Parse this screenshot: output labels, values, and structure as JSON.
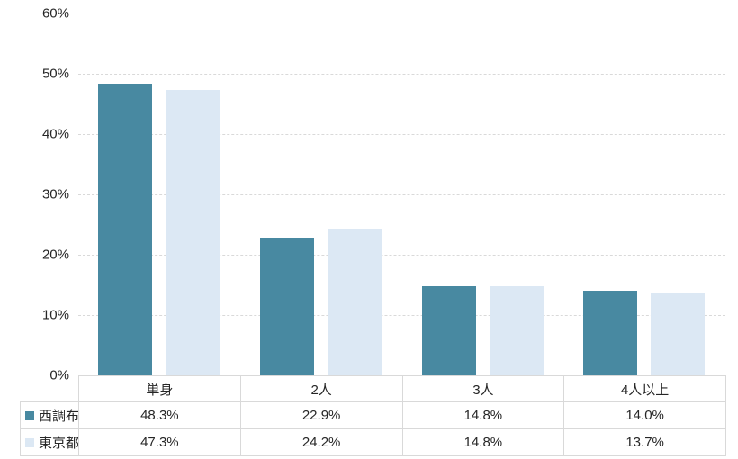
{
  "chart_data": {
    "type": "bar",
    "categories": [
      "単身",
      "2人",
      "3人",
      "4人以上"
    ],
    "series": [
      {
        "name": "西調布",
        "color": "#4889A1",
        "values": [
          48.3,
          22.9,
          14.8,
          14.0
        ]
      },
      {
        "name": "東京都",
        "color": "#DCE8F4",
        "values": [
          47.3,
          24.2,
          14.8,
          13.7
        ]
      }
    ],
    "title": "",
    "xlabel": "",
    "ylabel": "",
    "ylim": [
      0,
      60
    ],
    "ytick_step": 10,
    "ytick_labels": [
      "0%",
      "10%",
      "20%",
      "30%",
      "40%",
      "50%",
      "60%"
    ],
    "grid": true,
    "gridline_style": "dashed",
    "legend_position": "data-table-left"
  },
  "table": {
    "columns": [
      "単身",
      "2人",
      "3人",
      "4人以上"
    ],
    "rows": [
      {
        "label": "西調布",
        "swatch_color": "#4889A1",
        "values": [
          "48.3%",
          "22.9%",
          "14.8%",
          "14.0%"
        ]
      },
      {
        "label": "東京都",
        "swatch_color": "#DCE8F4",
        "values": [
          "47.3%",
          "24.2%",
          "14.8%",
          "13.7%"
        ]
      }
    ]
  },
  "colors": {
    "series_nishichofu": "#4889A1",
    "series_tokyoto": "#DCE8F4",
    "gridline": "#D9D9D9",
    "table_border": "#D9D9D9",
    "text": "#262626",
    "background": "#FFFFFF"
  }
}
